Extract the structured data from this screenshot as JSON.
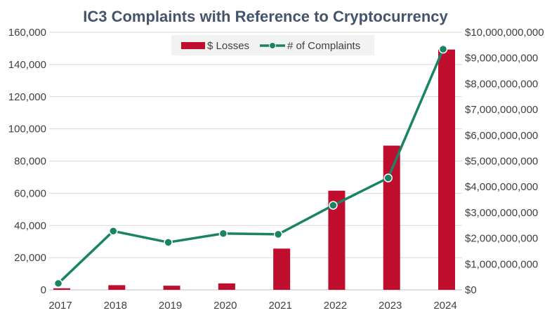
{
  "chart_data": {
    "type": "bar",
    "title": "IC3 Complaints with Reference to Cryptocurrency",
    "categories": [
      "2017",
      "2018",
      "2019",
      "2020",
      "2021",
      "2022",
      "2023",
      "2024"
    ],
    "series": [
      {
        "name": "$ Losses",
        "type": "bar",
        "axis": "right",
        "color": "#bf0d2e",
        "values": [
          60000000,
          180000000,
          160000000,
          250000000,
          1600000000,
          3850000000,
          5600000000,
          9330000000
        ]
      },
      {
        "name": "# of Complaints",
        "type": "line",
        "axis": "left",
        "color": "#198463",
        "values": [
          4000,
          36500,
          29500,
          35000,
          34500,
          52500,
          69500,
          149500
        ]
      }
    ],
    "left_axis": {
      "ylim": [
        0,
        160000
      ],
      "ticks": [
        0,
        20000,
        40000,
        60000,
        80000,
        100000,
        120000,
        140000,
        160000
      ],
      "tick_labels": [
        "0",
        "20,000",
        "40,000",
        "60,000",
        "80,000",
        "100,000",
        "120,000",
        "140,000",
        "160,000"
      ]
    },
    "right_axis": {
      "ylim": [
        0,
        10000000000
      ],
      "ticks": [
        0,
        1000000000,
        2000000000,
        3000000000,
        4000000000,
        5000000000,
        6000000000,
        7000000000,
        8000000000,
        9000000000,
        10000000000
      ],
      "tick_labels": [
        "$0",
        "$1,000,000,000",
        "$2,000,000,000",
        "$3,000,000,000",
        "$4,000,000,000",
        "$5,000,000,000",
        "$6,000,000,000",
        "$7,000,000,000",
        "$8,000,000,000",
        "$9,000,000,000",
        "$10,000,000,000"
      ]
    },
    "grid": true,
    "legend_position": "top-center"
  }
}
